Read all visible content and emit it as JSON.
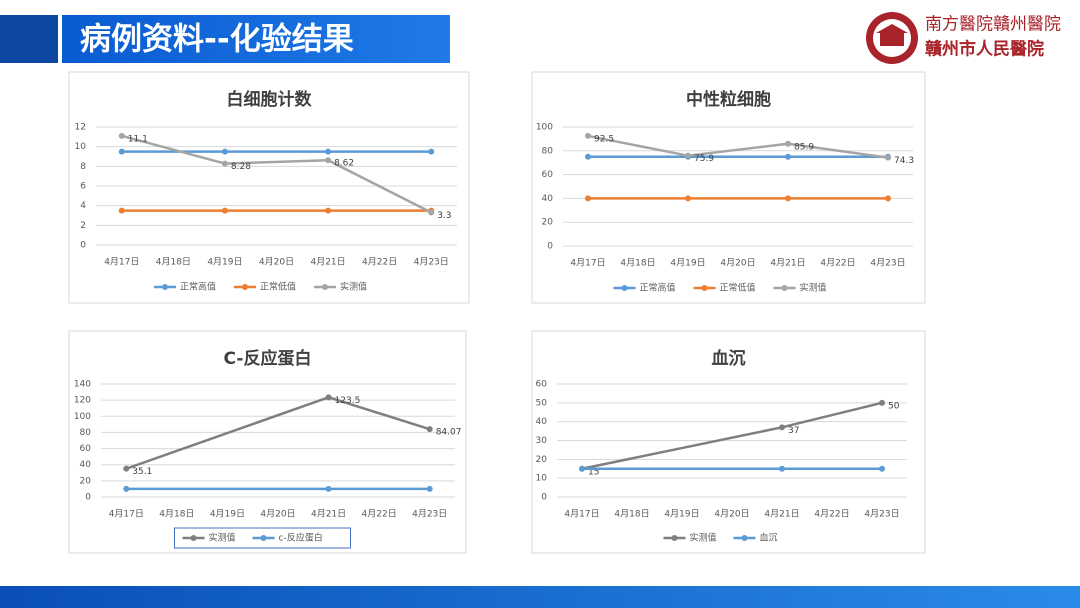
{
  "header": {
    "title": "病例资料--化验结果",
    "logo_line1": "南方醫院贛州醫院",
    "logo_line2": "贛州市人民醫院"
  },
  "chart_data": [
    {
      "type": "line",
      "title": "白细胞计数",
      "categories": [
        "4月17日",
        "4月18日",
        "4月19日",
        "4月20日",
        "4月21日",
        "4月22日",
        "4月23日"
      ],
      "ylim": [
        0,
        12
      ],
      "yticks": [
        0,
        2,
        4,
        6,
        8,
        10,
        12
      ],
      "grid": true,
      "legend": "bottom",
      "legend_box": false,
      "series": [
        {
          "name": "正常高值",
          "color": "#5b9bd5",
          "values": [
            9.5,
            null,
            9.5,
            null,
            9.5,
            null,
            9.5
          ]
        },
        {
          "name": "正常低值",
          "color": "#ed7d31",
          "values": [
            3.5,
            null,
            3.5,
            null,
            3.5,
            null,
            3.5
          ]
        },
        {
          "name": "实测值",
          "color": "#a5a5a5",
          "values": [
            11.1,
            null,
            8.28,
            null,
            8.62,
            null,
            3.3
          ],
          "labels": true
        }
      ]
    },
    {
      "type": "line",
      "title": "中性粒细胞",
      "categories": [
        "4月17日",
        "4月18日",
        "4月19日",
        "4月20日",
        "4月21日",
        "4月22日",
        "4月23日"
      ],
      "ylim": [
        0,
        100
      ],
      "yticks": [
        0,
        20,
        40,
        60,
        80,
        100
      ],
      "grid": true,
      "legend": "bottom",
      "legend_box": false,
      "series": [
        {
          "name": "正常高值",
          "color": "#5b9bd5",
          "values": [
            75,
            null,
            75,
            null,
            75,
            null,
            75
          ]
        },
        {
          "name": "正常低值",
          "color": "#ed7d31",
          "values": [
            40,
            null,
            40,
            null,
            40,
            null,
            40
          ]
        },
        {
          "name": "实测值",
          "color": "#a5a5a5",
          "values": [
            92.5,
            null,
            75.9,
            null,
            85.9,
            null,
            74.3
          ],
          "labels": true
        }
      ]
    },
    {
      "type": "line",
      "title": "C-反应蛋白",
      "categories": [
        "4月17日",
        "4月18日",
        "4月19日",
        "4月20日",
        "4月21日",
        "4月22日",
        "4月23日"
      ],
      "ylim": [
        0,
        140
      ],
      "yticks": [
        0,
        20,
        40,
        60,
        80,
        100,
        120,
        140
      ],
      "grid": true,
      "legend": "bottom",
      "legend_box": true,
      "series": [
        {
          "name": "实测值",
          "color": "#7f7f7f",
          "values": [
            35.1,
            null,
            null,
            null,
            123.5,
            null,
            84.07
          ],
          "labels": true
        },
        {
          "name": "c-反应蛋白",
          "color": "#5b9bd5",
          "values": [
            10,
            null,
            null,
            null,
            10,
            null,
            10
          ]
        }
      ]
    },
    {
      "type": "line",
      "title": "血沉",
      "categories": [
        "4月17日",
        "4月18日",
        "4月19日",
        "4月20日",
        "4月21日",
        "4月22日",
        "4月23日"
      ],
      "ylim": [
        0,
        60
      ],
      "yticks": [
        0,
        10,
        20,
        30,
        40,
        50,
        60
      ],
      "grid": true,
      "legend": "bottom",
      "legend_box": false,
      "series": [
        {
          "name": "实测值",
          "color": "#7f7f7f",
          "values": [
            15,
            null,
            null,
            null,
            37,
            null,
            50
          ],
          "labels": true
        },
        {
          "name": "血沉",
          "color": "#5b9bd5",
          "values": [
            15,
            null,
            null,
            null,
            15,
            null,
            15
          ]
        }
      ]
    }
  ]
}
